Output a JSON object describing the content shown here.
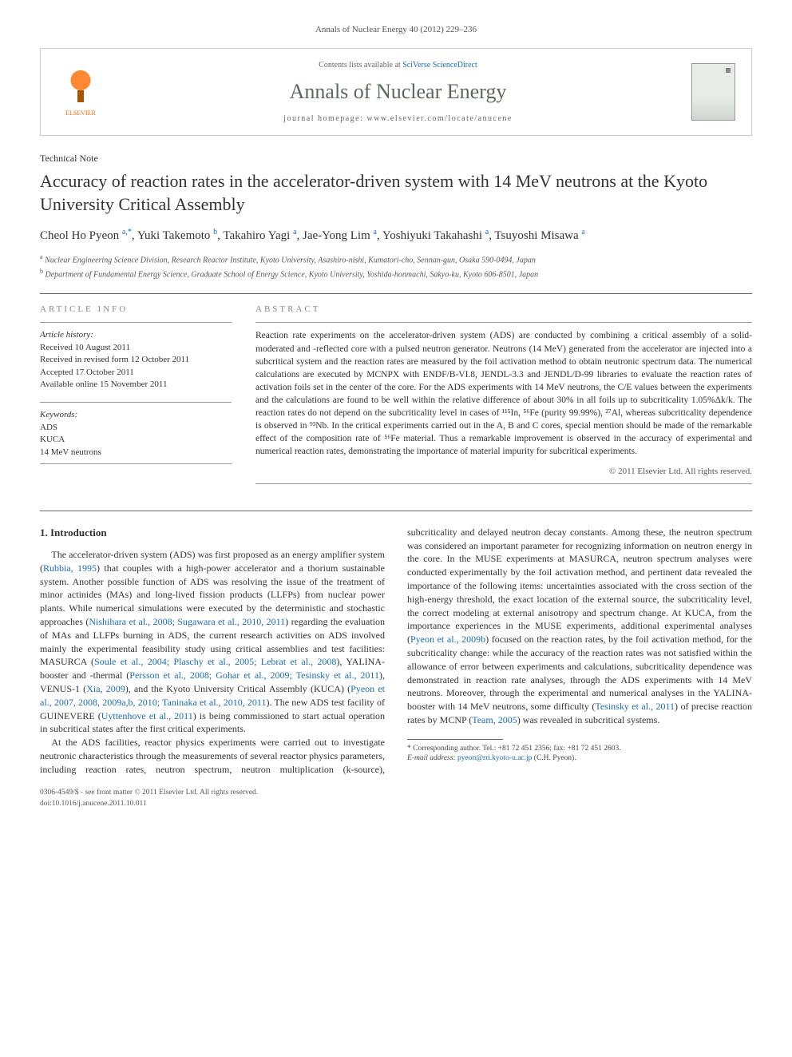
{
  "citation": "Annals of Nuclear Energy 40 (2012) 229–236",
  "header": {
    "publisher": "ELSEVIER",
    "contents_prefix": "Contents lists available at ",
    "contents_link": "SciVerse ScienceDirect",
    "journal_name": "Annals of Nuclear Energy",
    "homepage_label": "journal homepage: www.elsevier.com/locate/anucene"
  },
  "article": {
    "note_type": "Technical Note",
    "title": "Accuracy of reaction rates in the accelerator-driven system with 14 MeV neutrons at the Kyoto University Critical Assembly",
    "authors_html": "Cheol Ho Pyeon <sup>a,*</sup>, Yuki Takemoto <sup>b</sup>, Takahiro Yagi <sup>a</sup>, Jae-Yong Lim <sup>a</sup>, Yoshiyuki Takahashi <sup>a</sup>, Tsuyoshi Misawa <sup>a</sup>",
    "affiliations": [
      "Nuclear Engineering Science Division, Research Reactor Institute, Kyoto University, Asashiro-nishi, Kumatori-cho, Sennan-gun, Osaka 590-0494, Japan",
      "Department of Fundamental Energy Science, Graduate School of Energy Science, Kyoto University, Yoshida-honmachi, Sakyo-ku, Kyoto 606-8501, Japan"
    ]
  },
  "info": {
    "label": "ARTICLE INFO",
    "history_title": "Article history:",
    "history": [
      "Received 10 August 2011",
      "Received in revised form 12 October 2011",
      "Accepted 17 October 2011",
      "Available online 15 November 2011"
    ],
    "keywords_title": "Keywords:",
    "keywords": [
      "ADS",
      "KUCA",
      "14 MeV neutrons"
    ]
  },
  "abstract": {
    "label": "ABSTRACT",
    "text": "Reaction rate experiments on the accelerator-driven system (ADS) are conducted by combining a critical assembly of a solid-moderated and -reflected core with a pulsed neutron generator. Neutrons (14 MeV) generated from the accelerator are injected into a subcritical system and the reaction rates are measured by the foil activation method to obtain neutronic spectrum data. The numerical calculations are executed by MCNPX with ENDF/B-VI.8, JENDL-3.3 and JENDL/D-99 libraries to evaluate the reaction rates of activation foils set in the center of the core. For the ADS experiments with 14 MeV neutrons, the C/E values between the experiments and the calculations are found to be well within the relative difference of about 30% in all foils up to subcriticality 1.05%Δk/k. The reaction rates do not depend on the subcriticality level in cases of ¹¹⁵In, ⁵⁶Fe (purity 99.99%), ²⁷Al, whereas subcriticality dependence is observed in ⁹³Nb. In the critical experiments carried out in the A, B and C cores, special mention should be made of the remarkable effect of the composition rate of ⁵⁶Fe material. Thus a remarkable improvement is observed in the accuracy of experimental and numerical reaction rates, demonstrating the importance of material impurity for subcritical experiments.",
    "copyright": "© 2011 Elsevier Ltd. All rights reserved."
  },
  "body": {
    "heading": "1. Introduction",
    "para1_parts": [
      "The accelerator-driven system (ADS) was first proposed as an energy amplifier system (",
      "Rubbia, 1995",
      ") that couples with a high-power accelerator and a thorium sustainable system. Another possible function of ADS was resolving the issue of the treatment of minor actinides (MAs) and long-lived fission products (LLFPs) from nuclear power plants. While numerical simulations were executed by the deterministic and stochastic approaches (",
      "Nishihara et al., 2008; Sugawara et al., 2010, 2011",
      ") regarding the evaluation of MAs and LLFPs burning in ADS, the current research activities on ADS involved mainly the experimental feasibility study using critical assemblies and test facilities: MASURCA (",
      "Soule et al., 2004; Plaschy et al., 2005; Lebrat et al., 2008",
      "), YALINA-booster and -thermal (",
      "Persson et al., 2008; Gohar et al., 2009; Tesinsky et al., 2011",
      "), VENUS-1 (",
      "Xia, 2009",
      "), and the Kyoto University Critical Assembly (KUCA) (",
      "Pyeon et al., 2007, 2008, 2009a,b, 2010; Taninaka et al., 2010, 2011",
      "). The new ADS test facility of GUINEVERE (",
      "Uyttenhove et al., 2011",
      ") is being commissioned to start actual operation in subcritical states after the first critical experiments."
    ],
    "para2_parts": [
      "At the ADS facilities, reactor physics experiments were carried out to investigate neutronic characteristics through the measurements of several reactor physics parameters, including reaction rates, neutron spectrum, neutron multiplication (k-source), subcriticality and delayed neutron decay constants. Among these, the neutron spectrum was considered an important parameter for recognizing information on neutron energy in the core. In the MUSE experiments at MASURCA, neutron spectrum analyses were conducted experimentally by the foil activation method, and pertinent data revealed the importance of the following items: uncertainties associated with the cross section of the high-energy threshold, the exact location of the external source, the subcriticality level, the correct modeling at external anisotropy and spectrum change. At KUCA, from the importance experiences in the MUSE experiments, additional experimental analyses (",
      "Pyeon et al., 2009b",
      ") focused on the reaction rates, by the foil activation method, for the subcriticality change: while the accuracy of the reaction rates was not satisfied within the allowance of error between experiments and calculations, subcriticality dependence was demonstrated in reaction rate analyses, through the ADS experiments with 14 MeV neutrons. Moreover, through the experimental and numerical analyses in the YALINA-booster with 14 MeV neutrons, some difficulty (",
      "Tesinsky et al., 2011",
      ") of precise reaction rates by MCNP (",
      "Team, 2005",
      ") was revealed in subcritical systems."
    ]
  },
  "footnote": {
    "corresponding": "* Corresponding author. Tel.: +81 72 451 2356; fax: +81 72 451 2603.",
    "email_label": "E-mail address: ",
    "email": "pyeon@rri.kyoto-u.ac.jp",
    "email_suffix": " (C.H. Pyeon)."
  },
  "footer": {
    "left_line1": "0306-4549/$ - see front matter © 2011 Elsevier Ltd. All rights reserved.",
    "left_line2": "doi:10.1016/j.anucene.2011.10.011"
  }
}
